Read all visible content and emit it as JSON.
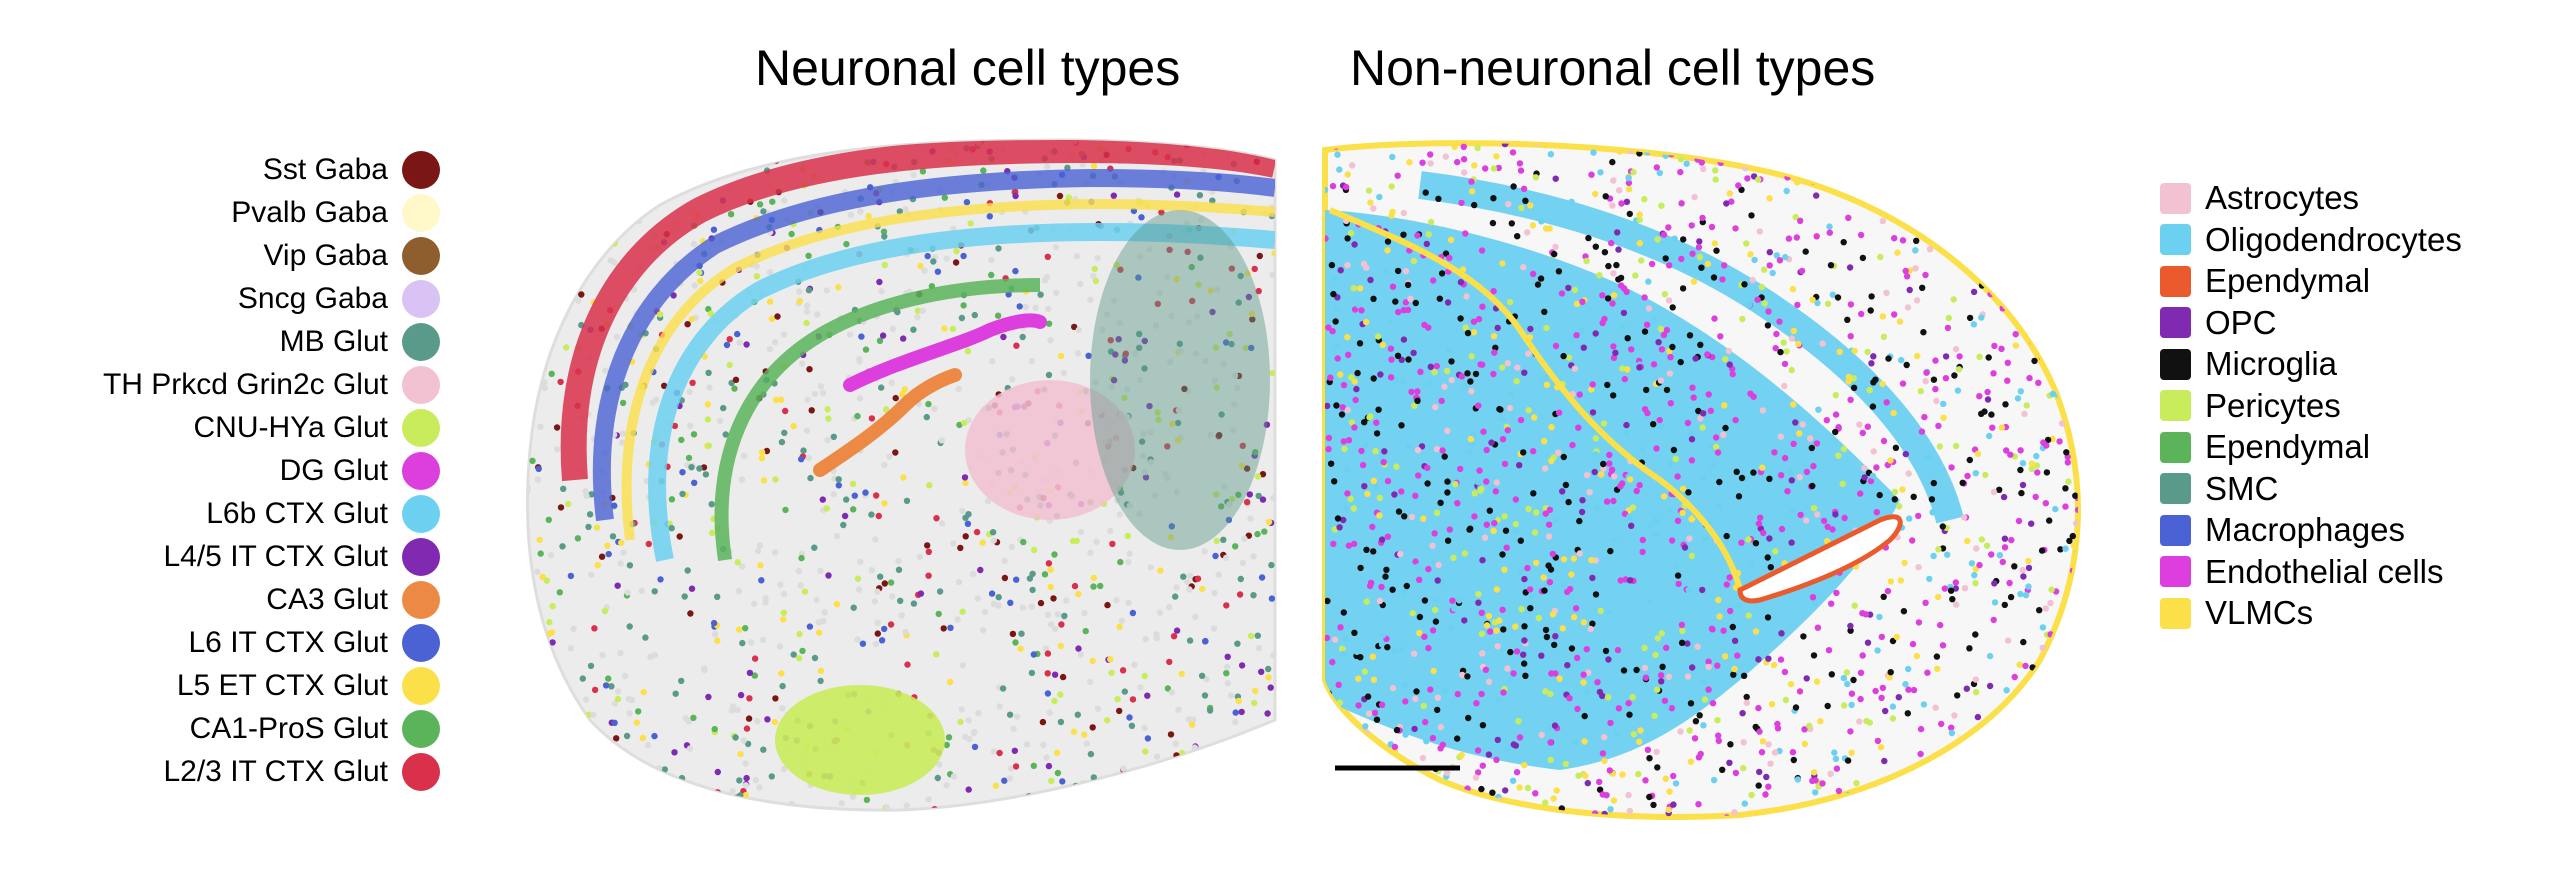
{
  "titles": {
    "left": "Neuronal cell types",
    "right": "Non-neuronal cell types"
  },
  "legend_left": [
    {
      "label": "Sst Gaba",
      "color": "#7a1614"
    },
    {
      "label": "Pvalb Gaba",
      "color": "#fff8c8"
    },
    {
      "label": "Vip Gaba",
      "color": "#8e5e2f"
    },
    {
      "label": "Sncg Gaba",
      "color": "#d9c3f4"
    },
    {
      "label": "MB Glut",
      "color": "#5a9a8a"
    },
    {
      "label": "TH Prkcd Grin2c Glut",
      "color": "#f2c1d2"
    },
    {
      "label": "CNU-HYa Glut",
      "color": "#c9ec5c"
    },
    {
      "label": "DG Glut",
      "color": "#dc3fde"
    },
    {
      "label": "L6b CTX Glut",
      "color": "#6cd0f0"
    },
    {
      "label": "L4/5 IT CTX Glut",
      "color": "#7f2ab0"
    },
    {
      "label": "CA3 Glut",
      "color": "#ec8a45"
    },
    {
      "label": "L6 IT CTX Glut",
      "color": "#4a62d4"
    },
    {
      "label": "L5 ET CTX Glut",
      "color": "#fbe04a"
    },
    {
      "label": "CA1-ProS Glut",
      "color": "#5bb45a"
    },
    {
      "label": "L2/3 IT CTX Glut",
      "color": "#d9304b"
    }
  ],
  "legend_right": [
    {
      "label": "Astrocytes",
      "color": "#f2c1d2"
    },
    {
      "label": "Oligodendrocytes",
      "color": "#6cd0f0"
    },
    {
      "label": "Ependymal",
      "color": "#ea5a2d"
    },
    {
      "label": "OPC",
      "color": "#7f2ab0"
    },
    {
      "label": "Microglia",
      "color": "#111111"
    },
    {
      "label": "Pericytes",
      "color": "#c9ec5c"
    },
    {
      "label": "Ependymal",
      "color": "#5bb45a"
    },
    {
      "label": "SMC",
      "color": "#5a9a8a"
    },
    {
      "label": "Macrophages",
      "color": "#4a62d4"
    },
    {
      "label": "Endothelial cells",
      "color": "#dc3fde"
    },
    {
      "label": "VLMCs",
      "color": "#fbe04a"
    }
  ],
  "colors": {
    "background_cells": "#dcdcdc",
    "scale_bar": "#000000"
  }
}
